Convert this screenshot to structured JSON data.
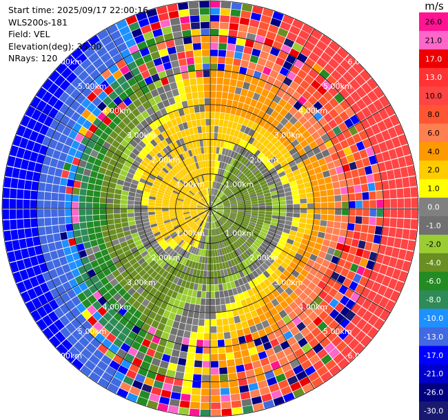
{
  "header": {
    "start_time": "Start time: 2025/09/17 22:00:16",
    "site": "WLS200s-181",
    "field": "Field: VEL",
    "elevation": "Elevation(deg): 35.00",
    "nrays": "NRays: 120"
  },
  "chart_data": {
    "type": "heatmap",
    "projection": "polar-ppi",
    "field": "VEL",
    "units": "m/s",
    "elevation_deg": 35.0,
    "n_rays": 120,
    "n_gates": 30,
    "max_range_km": 6.0,
    "range_rings_km": [
      1,
      2,
      3,
      4,
      5,
      6
    ],
    "ring_labels": [
      "1.00km",
      "2.00km",
      "3.00km",
      "4.00km",
      "5.00km",
      "6.00km"
    ],
    "azimuth_lines_deg": [
      0,
      30,
      60,
      90,
      120,
      150,
      180,
      210,
      240,
      270,
      300,
      330
    ],
    "colorbar": {
      "ticks": [
        "26.0",
        "21.0",
        "17.0",
        "13.0",
        "10.0",
        "8.0",
        "6.0",
        "4.0",
        "2.0",
        "1.0",
        "0.0",
        "-1.0",
        "-2.0",
        "-4.0",
        "-6.0",
        "-8.0",
        "-10.0",
        "-13.0",
        "-17.0",
        "-21.0",
        "-26.0",
        "-30.0"
      ],
      "colors": [
        "#ff1493",
        "#ff66cc",
        "#ee0000",
        "#ff3333",
        "#ff4444",
        "#ff5533",
        "#ff7f50",
        "#ff9900",
        "#ffcc00",
        "#ffff00",
        "#808080",
        "#707070",
        "#9acd32",
        "#6b8e23",
        "#228b22",
        "#2e8b57",
        "#1e90ff",
        "#4169e1",
        "#0000ff",
        "#0000cd",
        "#000080",
        "#191970"
      ]
    },
    "rays": [
      {
        "azimuth": 0,
        "velocity": [
          -0.5,
          1.5,
          3.0,
          3.5,
          3.5,
          4.0,
          4.5,
          5.0,
          5.0,
          6.0,
          6.0,
          7.0
        ]
      },
      {
        "azimuth": 30,
        "velocity": [
          -1.5,
          -1.5,
          -2.5,
          -3.0,
          2.5,
          4.0,
          4.5,
          6.0,
          8.0,
          9.0,
          11.0,
          12.0
        ]
      },
      {
        "azimuth": 60,
        "velocity": [
          -1.5,
          -2.5,
          -3.0,
          -2.5,
          1.5,
          3.5,
          5.0,
          7.5,
          9.0,
          10.0,
          11.0,
          12.0
        ]
      },
      {
        "azimuth": 90,
        "velocity": [
          -1.5,
          -2.0,
          -3.0,
          -2.5,
          -1.5,
          2.5,
          5.0,
          7.0,
          9.0,
          10.0,
          11.0,
          12.0
        ]
      },
      {
        "azimuth": 120,
        "velocity": [
          -1.5,
          -2.5,
          -2.5,
          -2.0,
          1.5,
          4.0,
          6.0,
          8.0,
          9.0,
          10.0,
          11.0,
          12.0
        ]
      },
      {
        "azimuth": 150,
        "velocity": [
          -1.0,
          -2.5,
          -3.0,
          -2.5,
          -1.5,
          3.0,
          4.5,
          6.0,
          7.0,
          8.0,
          9.0,
          10.0
        ]
      },
      {
        "azimuth": 180,
        "velocity": [
          -0.5,
          -1.5,
          -3.0,
          -3.5,
          -2.0,
          -0.5,
          1.5,
          3.0,
          4.0,
          4.5,
          5.0,
          6.0
        ]
      },
      {
        "azimuth": 210,
        "velocity": [
          2.0,
          3.0,
          3.5,
          -1.5,
          -2.5,
          -2.5,
          -3.0,
          -4.0,
          -6.0,
          -8.0,
          -10.0,
          -12.0
        ]
      },
      {
        "azimuth": 240,
        "velocity": [
          3.5,
          3.5,
          3.5,
          3.0,
          -1.5,
          -2.5,
          -4.0,
          -6.0,
          -9.0,
          -12.0,
          -14.0,
          -16.0
        ]
      },
      {
        "azimuth": 270,
        "velocity": [
          3.0,
          3.5,
          3.5,
          3.0,
          -1.5,
          -2.5,
          -5.0,
          -8.0,
          -11.0,
          -13.0,
          -15.0,
          -16.0
        ]
      },
      {
        "azimuth": 300,
        "velocity": [
          3.0,
          3.5,
          3.0,
          3.5,
          3.0,
          -1.5,
          -3.0,
          -6.0,
          -9.0,
          -12.0,
          -14.0,
          -15.0
        ]
      },
      {
        "azimuth": 330,
        "velocity": [
          2.5,
          3.0,
          3.5,
          4.0,
          3.5,
          3.0,
          -1.5,
          -3.0,
          -6.0,
          -9.0,
          -12.0,
          -13.0
        ]
      }
    ],
    "noise_beyond_km": 3.8
  }
}
